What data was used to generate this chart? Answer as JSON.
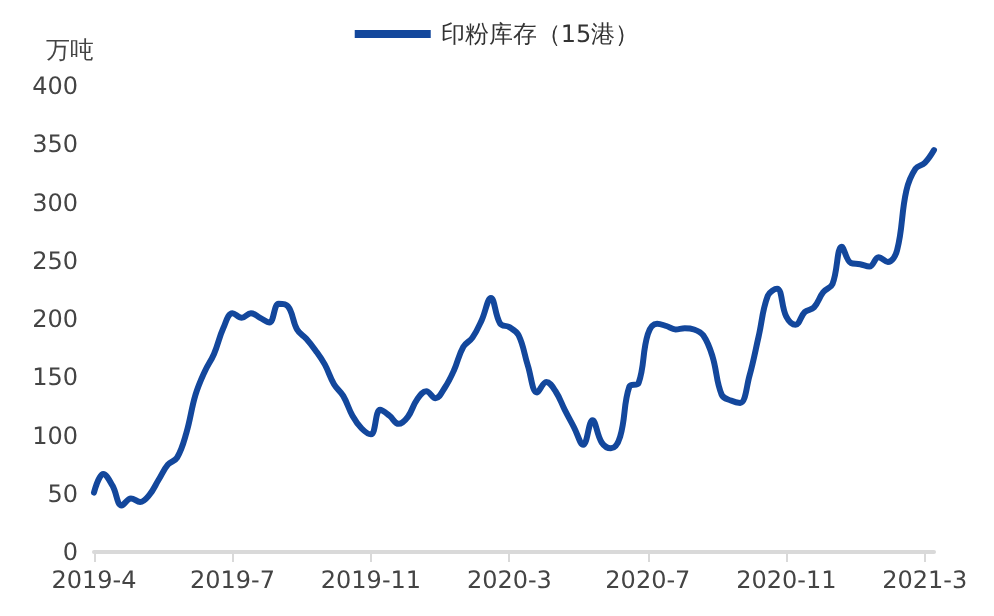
{
  "chart_data": {
    "type": "line",
    "ylabel": "万吨",
    "legend": "top",
    "grid": false,
    "marker": "none",
    "line_style": "solid",
    "categories": [
      "2019-4",
      null,
      null,
      null,
      null,
      null,
      null,
      null,
      null,
      null,
      null,
      null,
      null,
      null,
      null,
      "2019-7",
      null,
      null,
      null,
      null,
      null,
      null,
      null,
      null,
      null,
      null,
      null,
      null,
      null,
      null,
      "2019-11",
      null,
      null,
      null,
      null,
      null,
      null,
      null,
      null,
      null,
      null,
      null,
      null,
      null,
      null,
      "2020-3",
      null,
      null,
      null,
      null,
      null,
      null,
      null,
      null,
      null,
      null,
      null,
      null,
      null,
      null,
      "2020-7",
      null,
      null,
      null,
      null,
      null,
      null,
      null,
      null,
      null,
      null,
      null,
      null,
      null,
      null,
      "2020-11",
      null,
      null,
      null,
      null,
      null,
      null,
      null,
      null,
      null,
      null,
      null,
      null,
      null,
      null,
      "2021-3",
      null
    ],
    "series": [
      {
        "name": "印粉库存（15港）",
        "color": "#13479c",
        "values": [
          51,
          67,
          57,
          40,
          46,
          43,
          49,
          62,
          75,
          81,
          102,
          135,
          155,
          170,
          192,
          205,
          201,
          205,
          201,
          197,
          213,
          211,
          191,
          183,
          173,
          161,
          144,
          134,
          117,
          106,
          101,
          122,
          117,
          110,
          116,
          131,
          138,
          132,
          141,
          156,
          176,
          184,
          199,
          218,
          196,
          193,
          186,
          160,
          137,
          146,
          138,
          122,
          107,
          92,
          113,
          94,
          89,
          99,
          142,
          145,
          187,
          196,
          194,
          191,
          192,
          191,
          186,
          168,
          135,
          130,
          128,
          151,
          185,
          220,
          226,
          202,
          195,
          206,
          210,
          223,
          230,
          262,
          248,
          247,
          245,
          253,
          249,
          259,
          310,
          329,
          334,
          345
        ]
      }
    ],
    "ylim": [
      0,
      400
    ],
    "yticks": [
      0,
      50,
      100,
      150,
      200,
      250,
      300,
      350,
      400
    ]
  }
}
